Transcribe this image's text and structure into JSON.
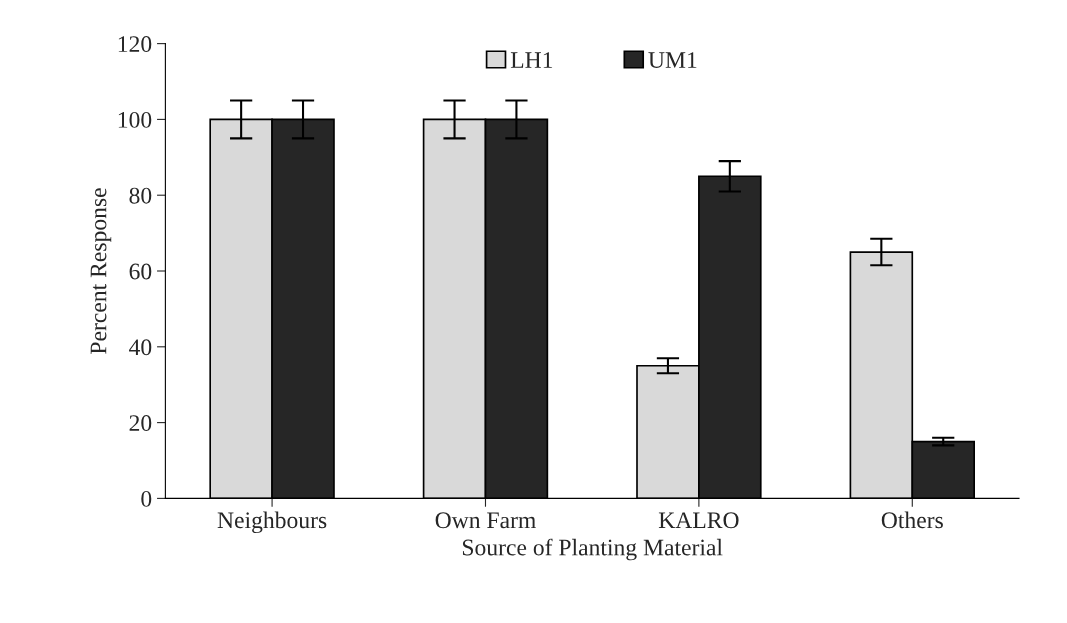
{
  "chart_data": {
    "type": "bar",
    "xlabel": "Source of Planting Material",
    "ylabel": "Percent Response",
    "categories": [
      "Neighbours",
      "Own Farm",
      "KALRO",
      "Others"
    ],
    "series": [
      {
        "name": "LH1",
        "color": "#d9d9d9",
        "values": [
          100,
          100,
          35,
          65
        ],
        "errors": [
          5,
          5,
          2,
          3.5
        ]
      },
      {
        "name": "UM1",
        "color": "#262626",
        "values": [
          100,
          100,
          85,
          15
        ],
        "errors": [
          5,
          5,
          4,
          1
        ]
      }
    ],
    "ylim": [
      0,
      120
    ],
    "yticks": [
      0,
      20,
      40,
      60,
      80,
      100,
      120
    ],
    "grid": false,
    "legend": "top"
  }
}
